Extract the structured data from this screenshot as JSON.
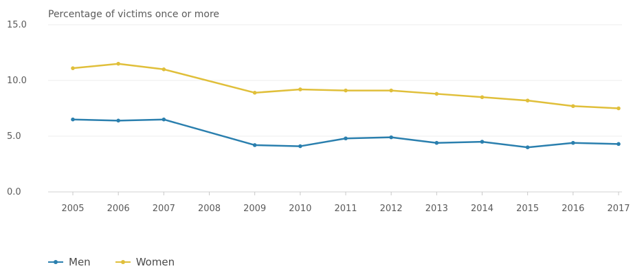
{
  "chart_data": {
    "type": "line",
    "title": "Percentage of victims once or more",
    "x": [
      "2005",
      "2006",
      "2007",
      "2008",
      "2009",
      "2010",
      "2011",
      "2012",
      "2013",
      "2014",
      "2015",
      "2016",
      "2017"
    ],
    "yticks": [
      "0.0",
      "5.0",
      "10.0",
      "15.0"
    ],
    "ylim": [
      0,
      15
    ],
    "grid": true,
    "legend_position": "bottom-left",
    "series": [
      {
        "name": "Men",
        "color": "#2a7fae",
        "values": [
          6.5,
          6.4,
          6.5,
          null,
          4.2,
          4.1,
          4.8,
          4.9,
          4.4,
          4.5,
          4.0,
          4.4,
          4.3
        ]
      },
      {
        "name": "Women",
        "color": "#e0bf3a",
        "values": [
          11.1,
          11.5,
          11.0,
          null,
          8.9,
          9.2,
          9.1,
          9.1,
          8.8,
          8.5,
          8.2,
          7.7,
          7.5
        ]
      }
    ]
  }
}
